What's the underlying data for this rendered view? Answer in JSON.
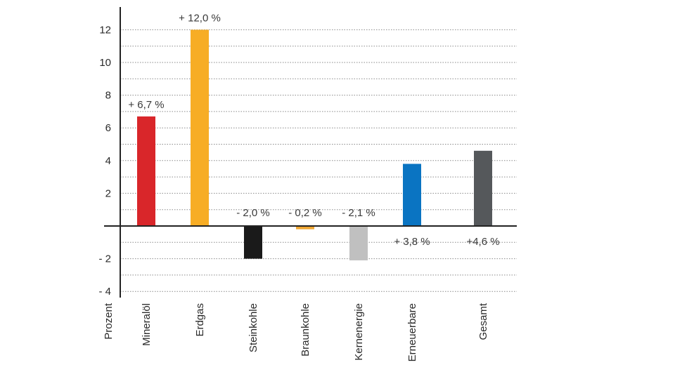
{
  "chart_data": {
    "type": "bar",
    "ylabel": "Prozent",
    "ylim": [
      -4,
      12
    ],
    "yticks": [
      {
        "v": 12,
        "label": "12"
      },
      {
        "v": 10,
        "label": "10"
      },
      {
        "v": 8,
        "label": "8"
      },
      {
        "v": 6,
        "label": "6"
      },
      {
        "v": 4,
        "label": "4"
      },
      {
        "v": 2,
        "label": "2"
      },
      {
        "v": -2,
        "label": "- 2"
      },
      {
        "v": -4,
        "label": "- 4"
      }
    ],
    "grid": true,
    "grid_style": "dotted",
    "categories": [
      "Mineralöl",
      "Erdgas",
      "Steinkohle",
      "Braunkohle",
      "Kernenergie",
      "Erneuerbare",
      "Gesamt"
    ],
    "values": [
      6.7,
      12.0,
      -2.0,
      -0.2,
      -2.1,
      3.8,
      4.6
    ],
    "labels": [
      "+ 6,7 %",
      "+ 12,0 %",
      "- 2,0 %",
      "- 0,2 %",
      "- 2,1 %",
      "+ 3,8 %",
      "+4,6 %"
    ],
    "label_position": [
      "above",
      "above",
      "above",
      "above",
      "above",
      "below",
      "below"
    ],
    "colors": [
      "#d9262a",
      "#f7ad25",
      "#1a1a1a",
      "#f0a733",
      "#c0c0c0",
      "#0a74c2",
      "#55585b"
    ]
  }
}
